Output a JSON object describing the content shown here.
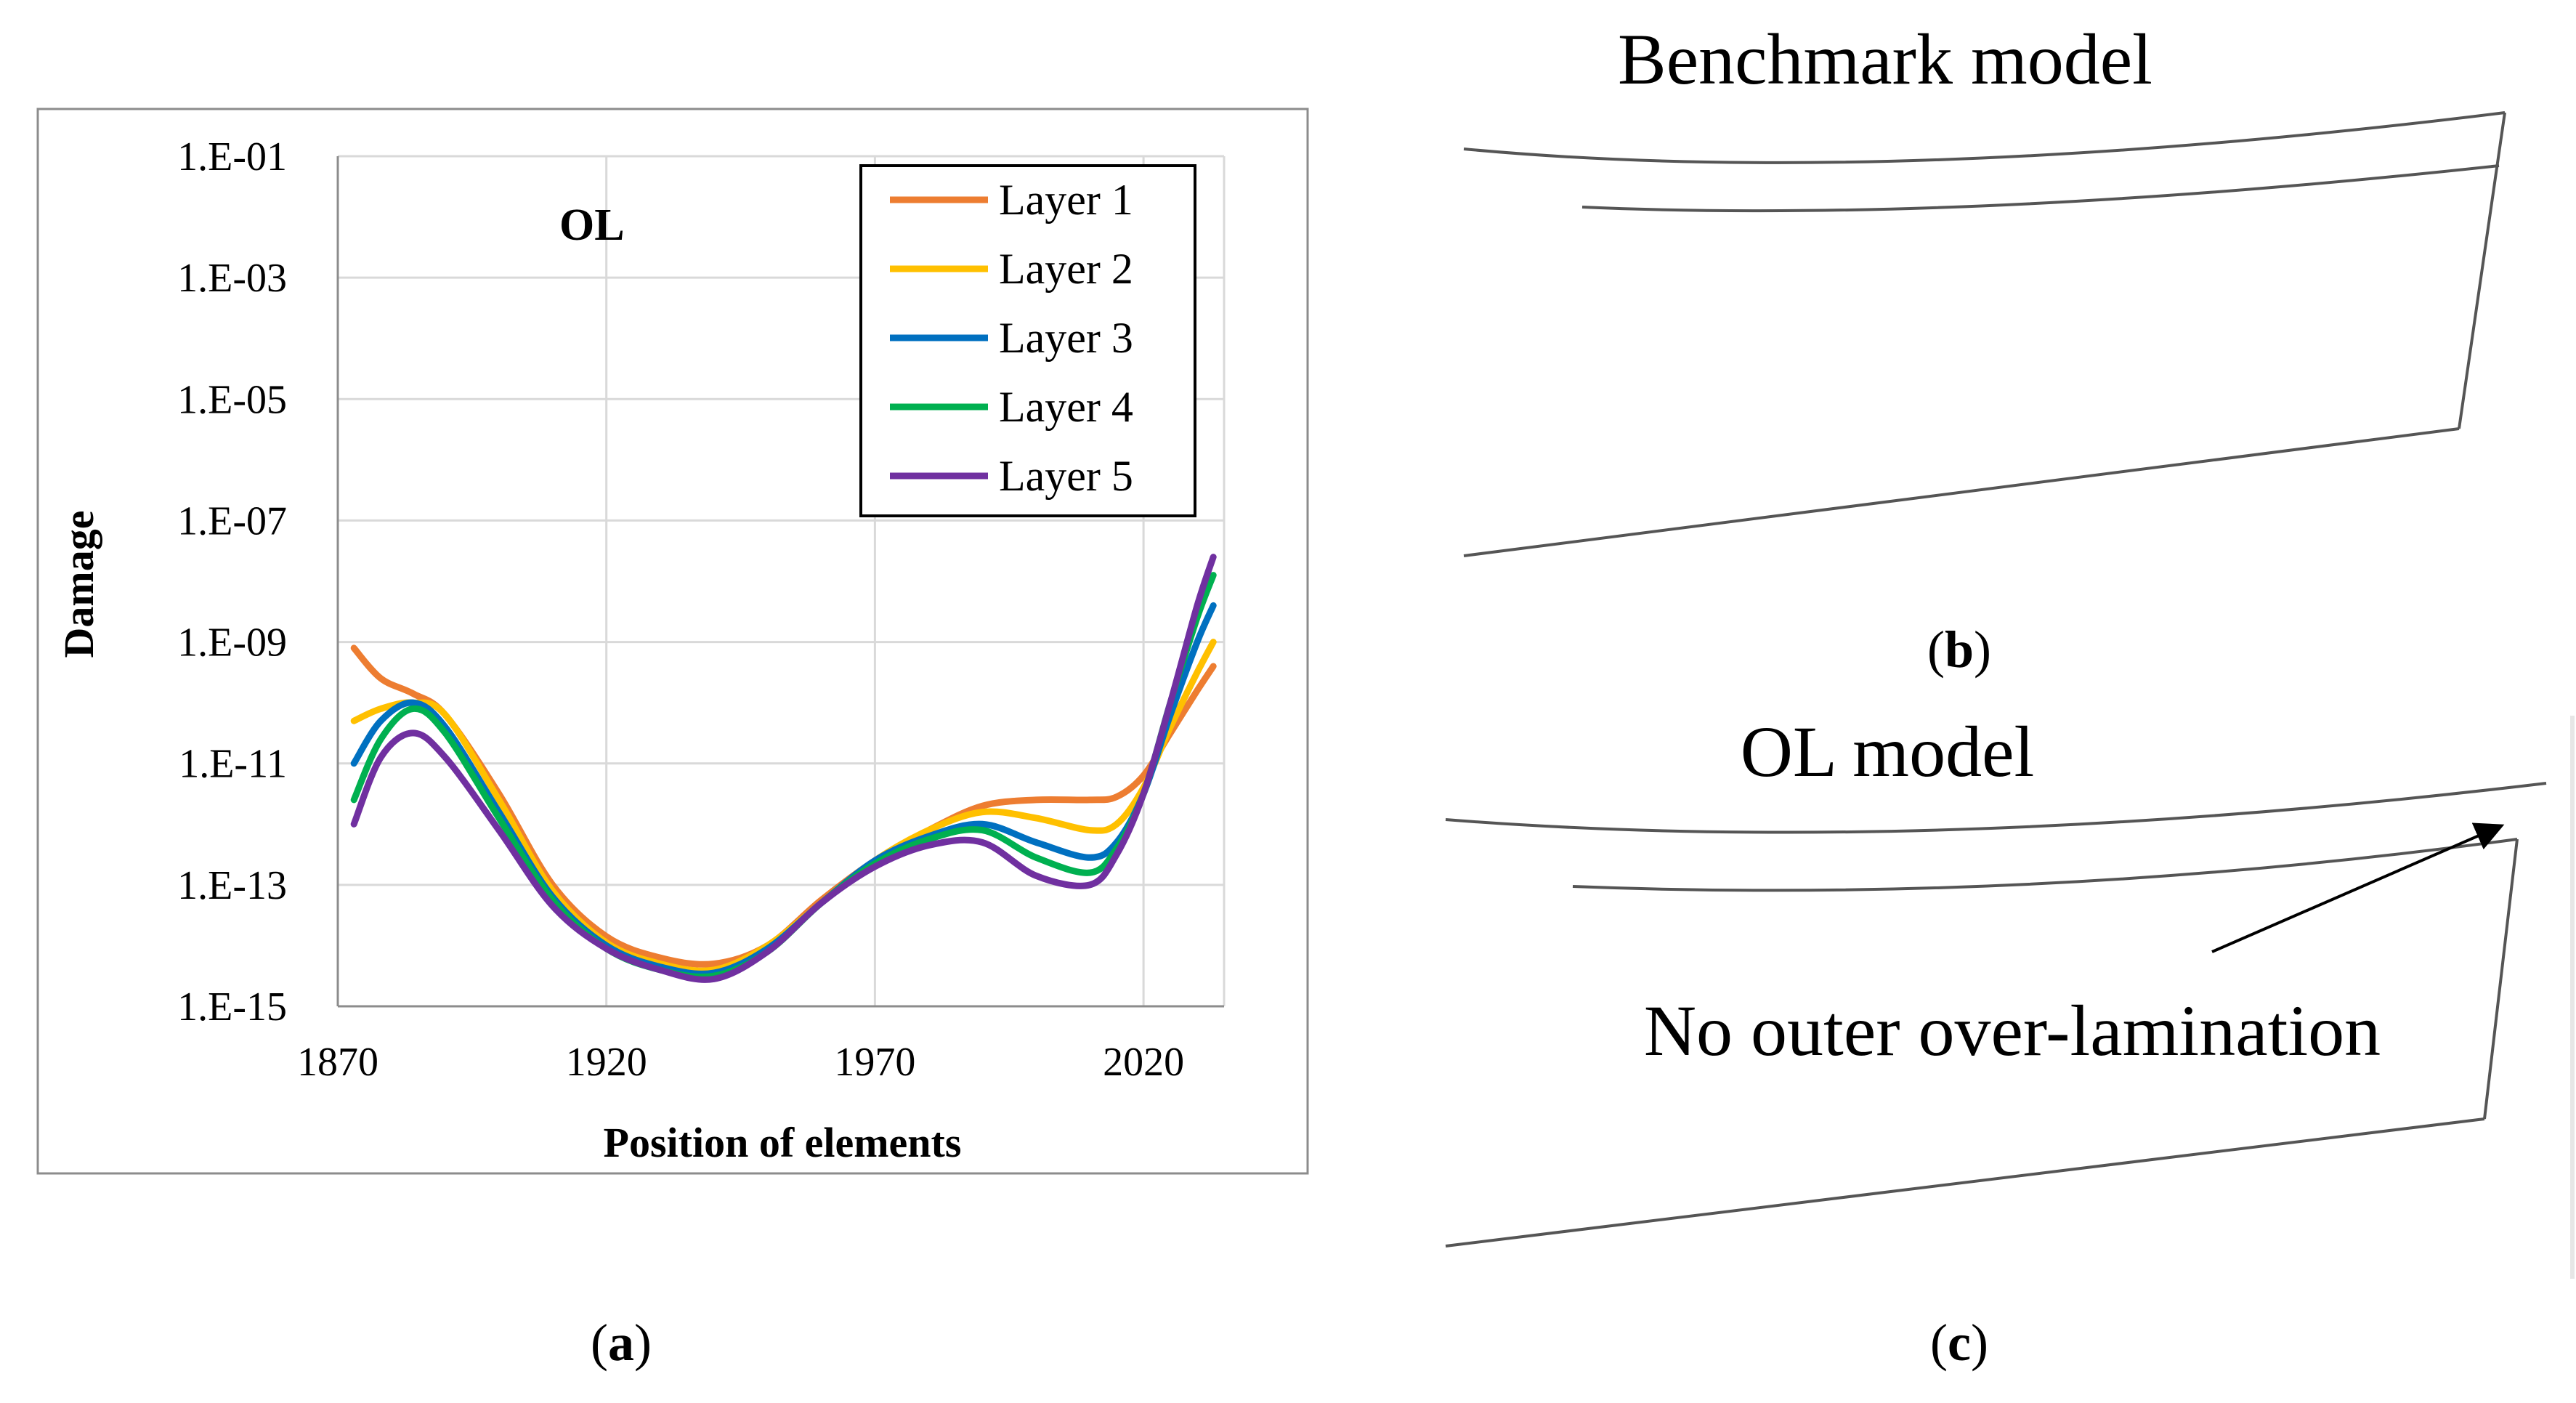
{
  "chart_data": {
    "type": "line",
    "annotation": "OL",
    "xlabel": "Position of elements",
    "ylabel": "Damage",
    "yscale": "log",
    "ylim_exp": [
      -15,
      -1
    ],
    "xlim": [
      1870,
      2035
    ],
    "x_ticks": [
      "1870",
      "1920",
      "1970",
      "2020"
    ],
    "y_ticks": [
      "1.E-01",
      "1.E-03",
      "1.E-05",
      "1.E-07",
      "1.E-09",
      "1.E-11",
      "1.E-13",
      "1.E-15"
    ],
    "grid": true,
    "legend_position": "top-right",
    "series": [
      {
        "name": "Layer 1",
        "color": "#ED7D31",
        "x": [
          1873,
          1878,
          1884,
          1890,
          1900,
          1910,
          1920,
          1930,
          1940,
          1950,
          1960,
          1970,
          1980,
          1990,
          2000,
          2010,
          2015,
          2020,
          2025,
          2030,
          2033
        ],
        "log10_values": [
          -9.1,
          -9.6,
          -9.85,
          -10.2,
          -11.5,
          -13.0,
          -13.85,
          -14.2,
          -14.3,
          -14.0,
          -13.25,
          -12.6,
          -12.1,
          -11.7,
          -11.6,
          -11.6,
          -11.55,
          -11.2,
          -10.5,
          -9.8,
          -9.4
        ]
      },
      {
        "name": "Layer 2",
        "color": "#FFC000",
        "x": [
          1873,
          1878,
          1884,
          1890,
          1900,
          1910,
          1920,
          1930,
          1940,
          1950,
          1960,
          1970,
          1980,
          1990,
          2000,
          2010,
          2015,
          2020,
          2025,
          2030,
          2033
        ],
        "log10_values": [
          -10.3,
          -10.1,
          -10.0,
          -10.2,
          -11.6,
          -13.1,
          -13.95,
          -14.3,
          -14.4,
          -14.0,
          -13.3,
          -12.6,
          -12.1,
          -11.8,
          -11.9,
          -12.1,
          -12.0,
          -11.4,
          -10.4,
          -9.5,
          -9.0
        ]
      },
      {
        "name": "Layer 3",
        "color": "#0070C0",
        "x": [
          1873,
          1878,
          1884,
          1890,
          1900,
          1910,
          1920,
          1930,
          1940,
          1950,
          1960,
          1970,
          1980,
          1990,
          2000,
          2010,
          2015,
          2020,
          2025,
          2030,
          2033
        ],
        "log10_values": [
          -11.0,
          -10.3,
          -10.0,
          -10.4,
          -11.8,
          -13.2,
          -14.0,
          -14.35,
          -14.45,
          -14.05,
          -13.3,
          -12.6,
          -12.2,
          -12.0,
          -12.3,
          -12.55,
          -12.3,
          -11.5,
          -10.2,
          -9.0,
          -8.4
        ]
      },
      {
        "name": "Layer 4",
        "color": "#00B050",
        "x": [
          1873,
          1878,
          1884,
          1890,
          1900,
          1910,
          1920,
          1930,
          1940,
          1950,
          1960,
          1970,
          1980,
          1990,
          2000,
          2010,
          2015,
          2020,
          2025,
          2030,
          2033
        ],
        "log10_values": [
          -11.6,
          -10.6,
          -10.1,
          -10.5,
          -11.9,
          -13.25,
          -14.05,
          -14.4,
          -14.5,
          -14.1,
          -13.3,
          -12.65,
          -12.25,
          -12.1,
          -12.55,
          -12.8,
          -12.4,
          -11.5,
          -10.0,
          -8.6,
          -7.9
        ]
      },
      {
        "name": "Layer 5",
        "color": "#7030A0",
        "x": [
          1873,
          1878,
          1884,
          1890,
          1900,
          1910,
          1920,
          1930,
          1940,
          1950,
          1960,
          1970,
          1980,
          1990,
          2000,
          2010,
          2015,
          2020,
          2025,
          2030,
          2033
        ],
        "log10_values": [
          -12.0,
          -10.9,
          -10.5,
          -10.9,
          -12.1,
          -13.35,
          -14.05,
          -14.4,
          -14.55,
          -14.1,
          -13.3,
          -12.7,
          -12.35,
          -12.3,
          -12.85,
          -13.0,
          -12.5,
          -11.5,
          -10.0,
          -8.4,
          -7.6
        ]
      }
    ]
  },
  "panel_b": {
    "title": "Benchmark model",
    "caption_open": "(",
    "caption_letter": "b",
    "caption_close": ")"
  },
  "panel_c": {
    "title": "OL model",
    "callout": "No outer over-lamination",
    "caption_open": "(",
    "caption_letter": "c",
    "caption_close": ")"
  },
  "panel_a": {
    "caption_open": "(",
    "caption_letter": "a",
    "caption_close": ")"
  }
}
